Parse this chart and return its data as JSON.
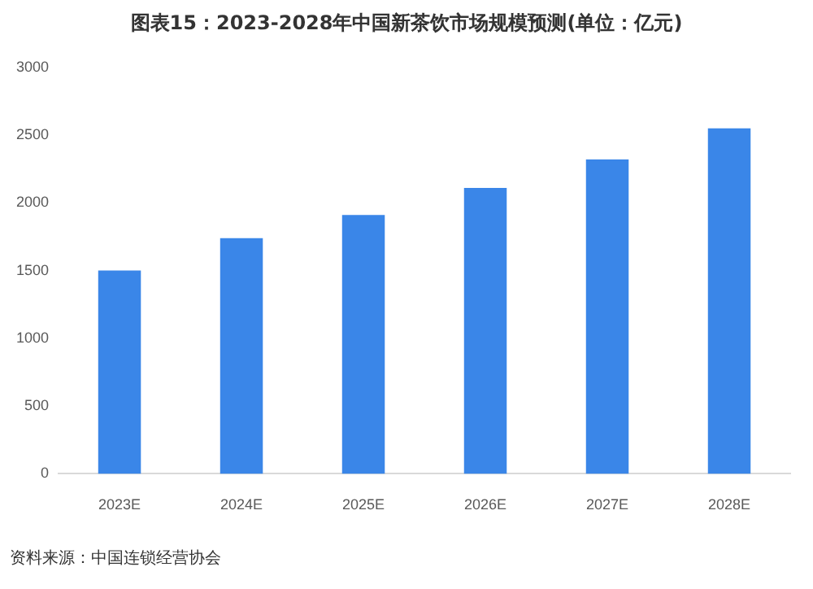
{
  "chart_data": {
    "type": "bar",
    "title": "图表15：2023-2028年中国新茶饮市场规模预测(单位：亿元)",
    "categories": [
      "2023E",
      "2024E",
      "2025E",
      "2026E",
      "2027E",
      "2028E"
    ],
    "values": [
      1500,
      1740,
      1910,
      2110,
      2320,
      2550
    ],
    "color": "#3a86e8",
    "ylim": [
      0,
      3000
    ],
    "yticks": [
      0,
      500,
      1000,
      1500,
      2000,
      2500,
      3000
    ],
    "grid": false,
    "annotations": [
      "资料来源：中国连锁经营协会"
    ]
  }
}
